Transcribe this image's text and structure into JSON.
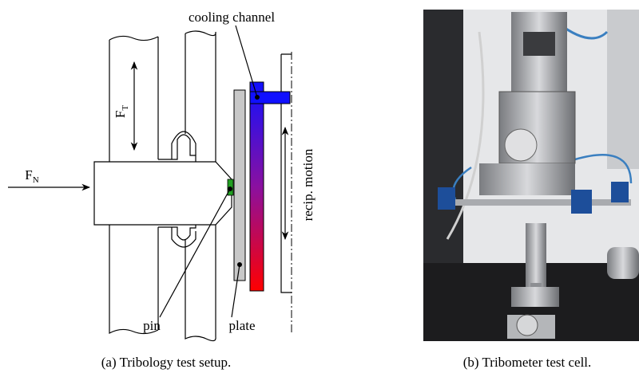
{
  "figure": {
    "panel_a": {
      "labels": {
        "cooling_channel": "cooling channel",
        "force_tangential": {
          "main": "F",
          "sub": "T"
        },
        "force_normal": {
          "main": "F",
          "sub": "N"
        },
        "recip_motion": "recip. motion",
        "pin": "pin",
        "plate": "plate"
      },
      "caption": "(a) Tribology test setup."
    },
    "panel_b": {
      "caption": "(b) Tribometer test cell."
    }
  }
}
